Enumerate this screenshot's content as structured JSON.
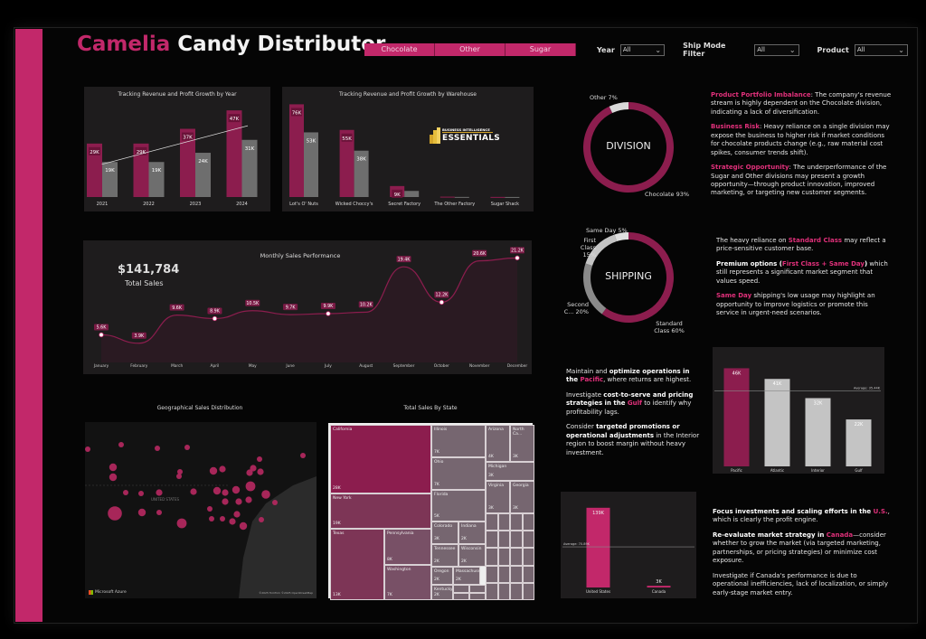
{
  "header": {
    "title_brand": "Camelia",
    "title_rest": " Candy Distributor",
    "division_tabs": [
      "Chocolate",
      "Other",
      "Sugar"
    ],
    "filters": [
      {
        "label": "Year",
        "value": "All"
      },
      {
        "label": "Ship Mode Filter",
        "value": "All"
      },
      {
        "label": "Product",
        "value": "All"
      }
    ]
  },
  "colors": {
    "accent": "#c2286a",
    "bar_primary": "#8c1d4e",
    "bar_secondary": "#6e6e6e",
    "panel": "#1e1c1d"
  },
  "chart_data": [
    {
      "id": "by_year",
      "type": "bar",
      "title": "Tracking Revenue and Profit Growth by Year",
      "categories": [
        "2021",
        "2022",
        "2023",
        "2024"
      ],
      "series": [
        {
          "name": "Revenue",
          "values": [
            29,
            29,
            37,
            47
          ],
          "labels": [
            "29K",
            "29K",
            "37K",
            "47K"
          ]
        },
        {
          "name": "Profit",
          "values": [
            19,
            19,
            24,
            31
          ],
          "labels": [
            "19K",
            "19K",
            "24K",
            "31K"
          ]
        }
      ],
      "trendline": true,
      "ylim": [
        0,
        50
      ]
    },
    {
      "id": "by_warehouse",
      "type": "bar",
      "title": "Tracking Revenue and Profit Growth by Warehouse",
      "categories": [
        "Lot's O' Nuts",
        "Wicked Choccy's",
        "Secret Factory",
        "The Other Factory",
        "Sugar Shack"
      ],
      "series": [
        {
          "name": "Revenue",
          "values": [
            76,
            55,
            9,
            0.3,
            0.1
          ],
          "labels": [
            "76K",
            "55K",
            "9K",
            "",
            ""
          ]
        },
        {
          "name": "Profit",
          "values": [
            53,
            38,
            5,
            0.1,
            0.05
          ],
          "labels": [
            "53K",
            "38K",
            "",
            "",
            ""
          ]
        }
      ],
      "ylim": [
        0,
        80
      ]
    },
    {
      "id": "monthly_sales",
      "type": "area",
      "title": "Monthly Sales Performance",
      "categories": [
        "January",
        "February",
        "March",
        "April",
        "May",
        "June",
        "July",
        "August",
        "September",
        "October",
        "November",
        "December"
      ],
      "values": [
        5.6,
        3.9,
        9.6,
        8.9,
        10.5,
        9.7,
        9.9,
        10.2,
        19.4,
        12.2,
        20.6,
        21.2
      ],
      "labels": [
        "5.6K",
        "3.9K",
        "9.6K",
        "8.9K",
        "10.5K",
        "9.7K",
        "9.9K",
        "10.2K",
        "19.4K",
        "12.2K",
        "20.6K",
        "21.2K"
      ],
      "ylim": [
        0,
        22
      ]
    },
    {
      "id": "division_donut",
      "type": "pie",
      "title": "DIVISION",
      "categories": [
        "Chocolate",
        "Other"
      ],
      "values": [
        93,
        7
      ],
      "labels": [
        "Chocolate 93%",
        "Other 7%"
      ]
    },
    {
      "id": "shipping_donut",
      "type": "pie",
      "title": "SHIPPING",
      "categories": [
        "Standard Class",
        "Second Class",
        "First Class",
        "Same Day"
      ],
      "values": [
        60,
        20,
        15,
        5
      ],
      "labels": [
        "Standard Class 60%",
        "Second C... 20%",
        "First Class 15%",
        "Same Day 5%"
      ]
    },
    {
      "id": "by_region",
      "type": "bar",
      "categories": [
        "Pacific",
        "Atlantic",
        "Interior",
        "Gulf"
      ],
      "values": [
        46,
        41,
        32,
        22
      ],
      "labels": [
        "46K",
        "41K",
        "32K",
        "22K"
      ],
      "average_label": "Average: 35.44K",
      "average": 35.44,
      "ylim": [
        0,
        50
      ]
    },
    {
      "id": "by_country",
      "type": "bar",
      "categories": [
        "United States",
        "Canada"
      ],
      "values": [
        139,
        3
      ],
      "labels": [
        "139K",
        "3K"
      ],
      "average_label": "Average: 70.89K",
      "average": 70.89,
      "ylim": [
        0,
        145
      ]
    },
    {
      "id": "treemap_state",
      "type": "heatmap",
      "title": "Total Sales By State",
      "cells": [
        {
          "name": "California",
          "value": "28K"
        },
        {
          "name": "New York",
          "value": "19K"
        },
        {
          "name": "Texas",
          "value": "13K"
        },
        {
          "name": "Pennsylvania",
          "value": "8K"
        },
        {
          "name": "Washington",
          "value": "7K"
        },
        {
          "name": "Illinois",
          "value": "7K"
        },
        {
          "name": "Ohio",
          "value": "7K"
        },
        {
          "name": "Florida",
          "value": "5K"
        },
        {
          "name": "Arizona",
          "value": "4K"
        },
        {
          "name": "North Ca...",
          "value": "3K"
        },
        {
          "name": "Michigan",
          "value": "3K"
        },
        {
          "name": "Virginia",
          "value": "3K"
        },
        {
          "name": "Georgia",
          "value": "3K"
        },
        {
          "name": "Colorado",
          "value": "3K"
        },
        {
          "name": "Indiana",
          "value": "2K"
        },
        {
          "name": "Tennessee",
          "value": "2K"
        },
        {
          "name": "Wisconsin",
          "value": "2K"
        },
        {
          "name": "Oregon",
          "value": "2K"
        },
        {
          "name": "Massachuse...",
          "value": "2K"
        },
        {
          "name": "Kentucky",
          "value": "2K"
        }
      ]
    }
  ],
  "kpi": {
    "value": "$141,784",
    "label": "Total Sales"
  },
  "map": {
    "title": "Geographical Sales Distribution",
    "country_label": "UNITED STATES",
    "attribution_left": "Microsoft Azure",
    "attribution_right": "©2025 TomTom ©2025 OpenStreetMap"
  },
  "insights": {
    "division": [
      {
        "hl": "Product Portfolio Imbalance",
        "text": ": The company's revenue stream is highly dependent on the Chocolate division, indicating a lack of diversification."
      },
      {
        "hl": "Business Risk",
        "text": ": Heavy reliance on a single division may expose the business to higher risk if market conditions for chocolate products change (e.g., raw material cost spikes, consumer trends shift)."
      },
      {
        "hl": "Strategic Opportunity",
        "text": ": The underperformance of the Sugar and Other divisions may present a growth opportunity—through product innovation, improved marketing, or targeting new customer segments."
      }
    ],
    "shipping": {
      "p1_pre": "The heavy reliance on ",
      "p1_hl": "Standard Class",
      "p1_post": " may reflect a price-sensitive customer base.",
      "p2_b": "Premium options (",
      "p2_hl": "First Class + Same Day",
      "p2_b2": ")",
      "p2_post": " which still represents a significant market segment that values speed.",
      "p3_hl": "Same Day",
      "p3_post": " shipping's low usage may highlight an opportunity to improve logistics or promote this service in urgent-need scenarios."
    },
    "region": {
      "p1_pre": "Maintain and ",
      "p1_b": "optimize operations in the ",
      "p1_hl": "Pacific",
      "p1_post": ", where returns are highest.",
      "p2_pre": "Investigate ",
      "p2_b": "cost-to-serve and pricing strategies in the ",
      "p2_hl": "Gulf",
      "p2_post": " to identify why profitability lags.",
      "p3_pre": "Consider ",
      "p3_b": "targeted promotions or operational adjustments",
      "p3_post": " in the Interior region to boost margin without heavy investment."
    },
    "country": {
      "p1_b": "Focus investments and scaling efforts in the ",
      "p1_hl": "U.S.",
      "p1_post": ", which is clearly the profit engine.",
      "p2_b": "Re-evaluate market strategy in ",
      "p2_hl": "Canada",
      "p2_post": "—consider whether to grow the market (via targeted marketing, partnerships, or pricing strategies) or minimize cost exposure.",
      "p3": "Investigate if Canada's performance is due to operational inefficiencies, lack of localization, or simply early-stage market entry."
    }
  },
  "logo": {
    "top": "BUSINESS INTELLIGENCE",
    "bottom": "ESSENTIALS"
  }
}
